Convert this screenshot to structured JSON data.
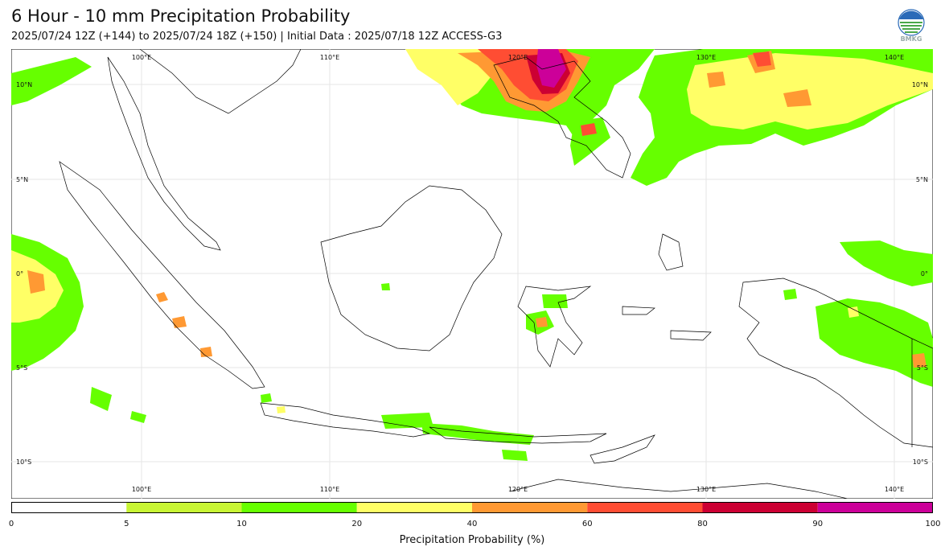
{
  "header": {
    "title": "6 Hour - 10 mm Precipitation Probability",
    "subtitle": "2025/07/24 12Z (+144) to 2025/07/24 18Z (+150) | Initial Data : 2025/07/18 12Z ACCESS-G3"
  },
  "logo": {
    "text": "BMKG",
    "icon": "bmkg-globe-icon"
  },
  "map": {
    "lon_labels": [
      "100°E",
      "110°E",
      "120°E",
      "130°E",
      "140°E"
    ],
    "lat_labels": [
      "10°N",
      "5°N",
      "0°",
      "5°S",
      "10°S"
    ],
    "extent": {
      "lon": [
        93.5,
        142.5
      ],
      "lat": [
        -11.8,
        12.0
      ]
    }
  },
  "colorbar": {
    "label": "Precipitation Probability (%)",
    "ticks": [
      "0",
      "5",
      "10",
      "20",
      "40",
      "60",
      "80",
      "90",
      "100"
    ],
    "bins": [
      {
        "range": "0-5",
        "color": "#ffffff"
      },
      {
        "range": "5-10",
        "color": "#c8f535"
      },
      {
        "range": "10-20",
        "color": "#66ff00"
      },
      {
        "range": "20-40",
        "color": "#ffff66"
      },
      {
        "range": "40-60",
        "color": "#ff9933"
      },
      {
        "range": "60-80",
        "color": "#ff4d33"
      },
      {
        "range": "80-90",
        "color": "#cc0033"
      },
      {
        "range": "90-100",
        "color": "#cc0099"
      }
    ]
  }
}
